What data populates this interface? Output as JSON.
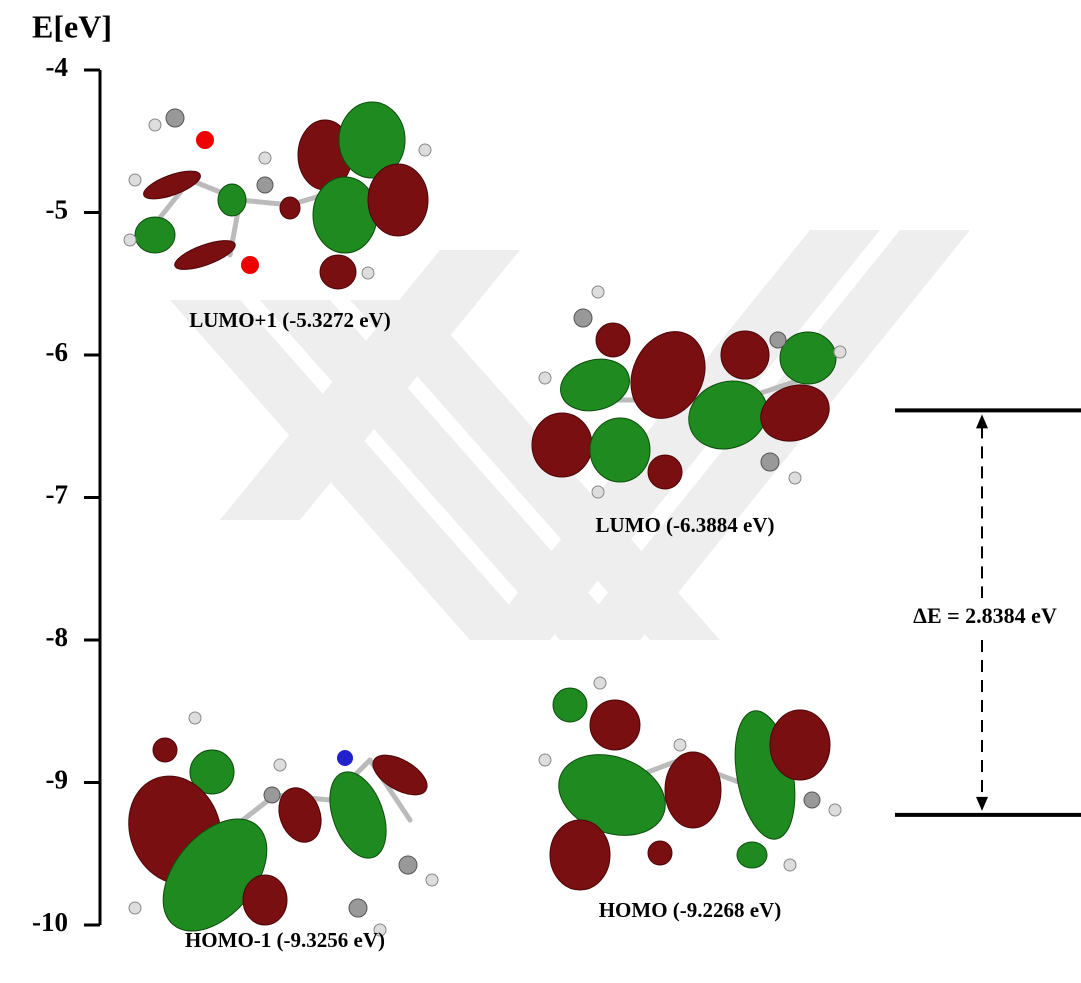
{
  "axis": {
    "title": "E[eV]",
    "ylim": [
      -10,
      -4
    ],
    "yticks": [
      -4,
      -5,
      -6,
      -7,
      -8,
      -9,
      -10
    ]
  },
  "orbitals": [
    {
      "label": "LUMO+1 (-5.3272 eV)"
    },
    {
      "label": "LUMO (-6.3884 eV)"
    },
    {
      "label": "HOMO (-9.2268 eV)"
    },
    {
      "label": "HOMO-1 (-9.3256 eV)"
    }
  ],
  "levels": [
    -6.3884,
    -9.2268
  ],
  "gap": {
    "label": "ΔE = 2.8384 eV"
  }
}
